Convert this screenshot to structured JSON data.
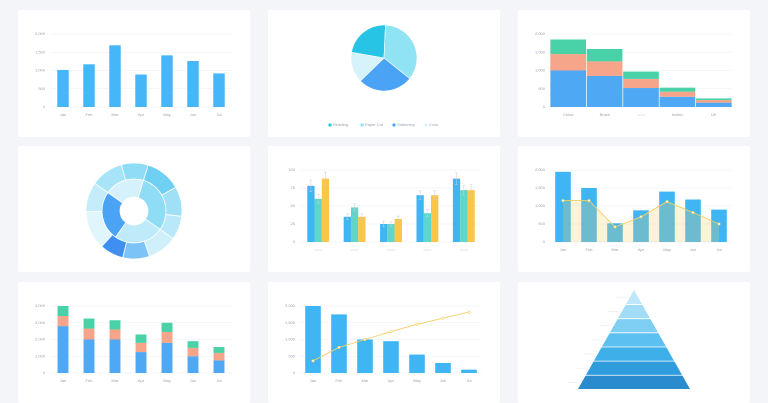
{
  "chart_data": [
    {
      "type": "bar",
      "categories": [
        "Jan",
        "Feb",
        "Mar",
        "Apr",
        "May",
        "Jun",
        "Jul"
      ],
      "values": [
        1015,
        1170,
        1690,
        890,
        1415,
        1260,
        920
      ],
      "color": "#45b6f7",
      "ylim": [
        0,
        2000
      ],
      "yticks": [
        0,
        500,
        {
          "value": 1000,
          "label": "1,000"
        },
        {
          "value": 1500,
          "label": "1,500"
        },
        {
          "value": 2000,
          "label": "2,000"
        }
      ],
      "grid": true
    },
    {
      "type": "pie",
      "categories": [
        "Reading",
        "Paper Cut",
        "Stationery",
        "Cook"
      ],
      "values": [
        23,
        35,
        27,
        15
      ],
      "colors": [
        "#27c4e6",
        "#8fe3f3",
        "#4aa3f5",
        "#d6f2fb"
      ],
      "legend": "bottom"
    },
    {
      "type": "bar",
      "stacked": true,
      "categories": [
        "China",
        "Brazil",
        null,
        "Indian",
        "UK"
      ],
      "series": [
        {
          "name": null,
          "color": "#4fa8f4",
          "values": [
            1000,
            850,
            520,
            280,
            120
          ]
        },
        {
          "name": null,
          "color": "#f6a58a",
          "values": [
            450,
            400,
            250,
            140,
            70
          ]
        },
        {
          "name": null,
          "color": "#49d2a8",
          "values": [
            400,
            340,
            200,
            110,
            45
          ]
        }
      ],
      "ylim": [
        0,
        2000
      ],
      "yticks": [
        0,
        500,
        {
          "value": 1000,
          "label": "1,000"
        },
        {
          "value": 1500,
          "label": "1,500"
        },
        {
          "value": 2000,
          "label": "2,000"
        }
      ],
      "grid": true
    },
    {
      "type": "sunburst",
      "rings": [
        {
          "values": [
            30,
            25,
            25,
            20
          ],
          "colors": [
            "#8fdcf6",
            "#bfeafa",
            "#4aa3f5",
            "#d5f1fb"
          ]
        },
        {
          "values": [
            12,
            10,
            8,
            10,
            9,
            8,
            13,
            10,
            11,
            9
          ],
          "colors": [
            "#6fd0f4",
            "#9fe0f7",
            "#b9e9f9",
            "#cfeffb",
            "#7cc4f7",
            "#3f8ff0",
            "#e1f5fc",
            "#c4ecfa",
            "#a8e4f8",
            "#8fdcf6"
          ]
        }
      ]
    },
    {
      "type": "bar",
      "categories": [
        null,
        null,
        null,
        null,
        null
      ],
      "series": [
        {
          "name": null,
          "color": "#3fb5f3",
          "values": [
            78,
            35,
            25,
            65,
            88
          ],
          "errors": [
            8,
            4,
            4,
            6,
            8
          ]
        },
        {
          "name": null,
          "color": "#5fd6c9",
          "values": [
            60,
            48,
            25,
            40,
            72
          ],
          "errors": [
            6,
            5,
            3,
            5,
            7
          ]
        },
        {
          "name": null,
          "color": "#f7c64a",
          "values": [
            88,
            35,
            32,
            65,
            72
          ],
          "errors": [
            9,
            4,
            4,
            6,
            8
          ]
        }
      ],
      "ylim": [
        0,
        100
      ],
      "yticks": [
        0,
        25,
        50,
        75,
        100
      ],
      "grid": true
    },
    {
      "type": "bar",
      "categories": [
        "Jan",
        "Feb",
        "Mar",
        "Apr",
        "May",
        "Jun",
        "Jul"
      ],
      "series": [
        {
          "name": null,
          "color": "#3fb5f3",
          "values": [
            1950,
            1500,
            520,
            880,
            1400,
            1180,
            900
          ]
        },
        {
          "name": null,
          "color": "#f2cf63",
          "type": "line",
          "area": true,
          "values": [
            1150,
            1150,
            420,
            700,
            1120,
            820,
            500
          ]
        }
      ],
      "ylim": [
        0,
        2000
      ],
      "yticks": [
        0,
        500,
        {
          "value": 1000,
          "label": "1,000"
        },
        {
          "value": 1500,
          "label": "1,500"
        },
        {
          "value": 2000,
          "label": "2,000"
        }
      ],
      "grid": true
    },
    {
      "type": "bar",
      "stacked": true,
      "categories": [
        "Jan",
        "Feb",
        "Mar",
        "Apr",
        "May",
        "Jun",
        "Jul"
      ],
      "series": [
        {
          "name": null,
          "color": "#4fa8f4",
          "values": [
            2800,
            2000,
            2000,
            1250,
            1800,
            1000,
            750
          ]
        },
        {
          "name": null,
          "color": "#f6a58a",
          "values": [
            600,
            650,
            600,
            550,
            650,
            500,
            450
          ]
        },
        {
          "name": null,
          "color": "#49d2a8",
          "values": [
            600,
            600,
            550,
            500,
            550,
            400,
            350
          ]
        }
      ],
      "ylim": [
        0,
        4000
      ],
      "yticks": [
        0,
        {
          "value": 1000,
          "label": "1,000"
        },
        {
          "value": 2000,
          "label": "2,000"
        },
        {
          "value": 3000,
          "label": "3,000"
        },
        {
          "value": 4000,
          "label": "4,000"
        }
      ],
      "grid": true
    },
    {
      "type": "bar",
      "categories": [
        "Jan",
        "Feb",
        "Mar",
        "Apr",
        "May",
        "Jun",
        "Jul"
      ],
      "series": [
        {
          "name": null,
          "color": "#3fb5f3",
          "values": [
            2000,
            1750,
            1000,
            950,
            550,
            300,
            100
          ]
        },
        {
          "name": null,
          "color": "#f2cf63",
          "type": "line",
          "axis": "y2",
          "values": [
            20,
            42,
            55,
            68,
            80,
            90,
            100
          ]
        }
      ],
      "ylim": [
        0,
        2000
      ],
      "yticks": [
        0,
        500,
        {
          "value": 1000,
          "label": "1,000"
        },
        {
          "value": 1500,
          "label": "1,500"
        },
        {
          "value": 2000,
          "label": "2,000"
        }
      ],
      "y2lim": [
        0,
        110
      ],
      "grid": true
    },
    {
      "type": "pyramid",
      "categories": [
        null,
        null,
        null,
        null,
        null,
        null,
        null
      ],
      "colors": [
        "#bfe7fa",
        "#a2dcf7",
        "#7fcff4",
        "#5cc0f0",
        "#3eafe9",
        "#2f9ddd",
        "#2a8ccc"
      ]
    }
  ]
}
